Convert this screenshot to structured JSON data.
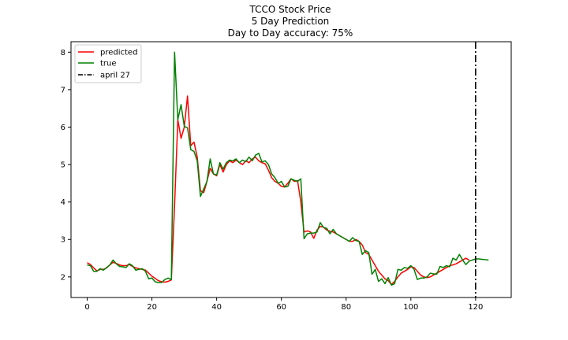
{
  "chart_data": {
    "type": "line",
    "title_lines": [
      "TCCO Stock Price",
      "5 Day Prediction",
      "Day to Day accuracy: 75%"
    ],
    "xlim": [
      -5,
      131
    ],
    "ylim": [
      1.45,
      8.28
    ],
    "xticks": [
      0,
      20,
      40,
      60,
      80,
      100,
      120
    ],
    "yticks": [
      2,
      3,
      4,
      5,
      6,
      7,
      8
    ],
    "legend_position": "top-left",
    "series": [
      {
        "name": "predicted",
        "color": "#ff0000",
        "style": "solid",
        "x_start": 0,
        "values": [
          2.38,
          2.33,
          2.24,
          2.16,
          2.2,
          2.2,
          2.24,
          2.32,
          2.39,
          2.36,
          2.32,
          2.3,
          2.3,
          2.33,
          2.28,
          2.24,
          2.22,
          2.2,
          2.18,
          2.1,
          2.02,
          1.96,
          1.9,
          1.87,
          1.86,
          1.88,
          1.92,
          3.9,
          6.2,
          5.7,
          6.0,
          6.83,
          5.5,
          5.6,
          5.2,
          4.3,
          4.25,
          4.55,
          4.9,
          4.75,
          4.7,
          5.0,
          4.8,
          5.0,
          5.1,
          5.05,
          5.12,
          5.05,
          5.0,
          5.1,
          5.05,
          5.15,
          5.2,
          5.1,
          5.05,
          5.02,
          4.85,
          4.65,
          4.55,
          4.5,
          4.42,
          4.4,
          4.5,
          4.62,
          4.55,
          4.57,
          4.0,
          3.2,
          3.23,
          3.2,
          3.03,
          3.25,
          3.35,
          3.33,
          3.25,
          3.22,
          3.2,
          3.15,
          3.1,
          3.05,
          3.0,
          2.95,
          2.95,
          3.0,
          2.95,
          2.85,
          2.65,
          2.6,
          2.45,
          2.3,
          2.15,
          2.05,
          1.95,
          1.9,
          1.8,
          1.88,
          2.0,
          2.1,
          2.15,
          2.2,
          2.27,
          2.25,
          2.15,
          2.05,
          2.0,
          1.98,
          2.0,
          2.05,
          2.1,
          2.15,
          2.2,
          2.25,
          2.3,
          2.32,
          2.35,
          2.4,
          2.45,
          2.5,
          2.45
        ]
      },
      {
        "name": "true",
        "color": "#008000",
        "style": "solid",
        "x_start": 0,
        "values": [
          2.32,
          2.3,
          2.15,
          2.15,
          2.22,
          2.18,
          2.25,
          2.32,
          2.45,
          2.35,
          2.28,
          2.27,
          2.25,
          2.35,
          2.3,
          2.18,
          2.2,
          2.22,
          2.15,
          1.95,
          1.97,
          1.87,
          1.85,
          1.85,
          1.93,
          1.97,
          1.93,
          8.0,
          6.2,
          6.6,
          6.02,
          5.98,
          5.4,
          5.35,
          5.1,
          4.15,
          4.35,
          4.55,
          5.15,
          4.75,
          4.72,
          5.05,
          4.88,
          5.05,
          5.12,
          5.1,
          5.15,
          5.05,
          5.12,
          5.08,
          5.2,
          5.1,
          5.25,
          5.3,
          5.07,
          5.1,
          5.0,
          4.75,
          4.65,
          4.5,
          4.55,
          4.4,
          4.42,
          4.62,
          4.58,
          4.55,
          4.62,
          3.02,
          3.15,
          3.17,
          3.17,
          3.2,
          3.45,
          3.32,
          3.3,
          3.15,
          3.27,
          3.15,
          3.1,
          3.05,
          3.0,
          2.95,
          3.05,
          2.97,
          2.95,
          2.6,
          2.7,
          2.65,
          2.07,
          2.2,
          1.88,
          1.95,
          1.82,
          1.98,
          1.78,
          1.82,
          2.2,
          2.18,
          2.25,
          2.23,
          2.3,
          2.2,
          1.93,
          1.97,
          1.97,
          2.0,
          2.1,
          2.08,
          2.07,
          2.28,
          2.25,
          2.3,
          2.27,
          2.5,
          2.45,
          2.6,
          2.45,
          2.33,
          2.42,
          2.45,
          2.48,
          2.48,
          2.47,
          2.46,
          2.45
        ]
      }
    ],
    "vline": {
      "name": "april 27",
      "x": 120,
      "color": "#000000",
      "style": "dashdot"
    }
  }
}
